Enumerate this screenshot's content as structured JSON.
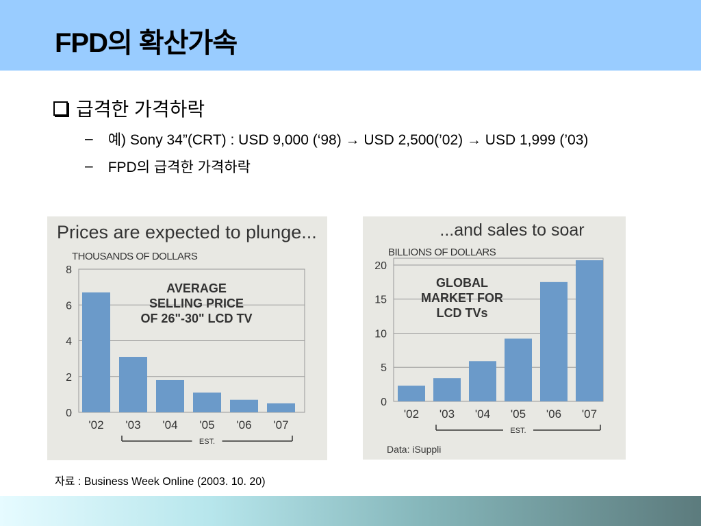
{
  "slide": {
    "title": "FPD의 확산가속",
    "bullet_main": "급격한 가격하락",
    "sub1": "예) Sony 34”(CRT) : USD 9,000 (‘98) → USD 2,500(’02) → USD 1,999 (’03)",
    "sub2": "FPD의 급격한 가격하락",
    "source": "자료 : Business Week Online (2003. 10. 20)"
  },
  "chart_data": [
    {
      "type": "bar",
      "title": "Prices are expected to plunge...",
      "ylabel": "THOUSANDS OF DOLLARS",
      "annotation": "AVERAGE SELLING PRICE OF 26\"-30\" LCD TV",
      "categories": [
        "'02",
        "'03",
        "'04",
        "'05",
        "'06",
        "'07"
      ],
      "values": [
        6.7,
        3.1,
        1.8,
        1.1,
        0.7,
        0.5
      ],
      "yticks": [
        0,
        2,
        4,
        6,
        8
      ],
      "ylim": [
        0,
        8
      ],
      "est_label": "EST.",
      "bar_color": "#6b9ac9",
      "grid": true
    },
    {
      "type": "bar",
      "title": "...and sales to soar",
      "ylabel": "BILLIONS OF DOLLARS",
      "annotation": "GLOBAL MARKET FOR LCD TVs",
      "categories": [
        "'02",
        "'03",
        "'04",
        "'05",
        "'06",
        "'07"
      ],
      "values": [
        2.3,
        3.4,
        5.9,
        9.2,
        17.5,
        20.7
      ],
      "yticks": [
        0,
        5,
        10,
        15,
        20
      ],
      "ylim": [
        0,
        21
      ],
      "est_label": "EST.",
      "data_source": "Data: iSuppli",
      "bar_color": "#6b9ac9",
      "grid": true
    }
  ]
}
